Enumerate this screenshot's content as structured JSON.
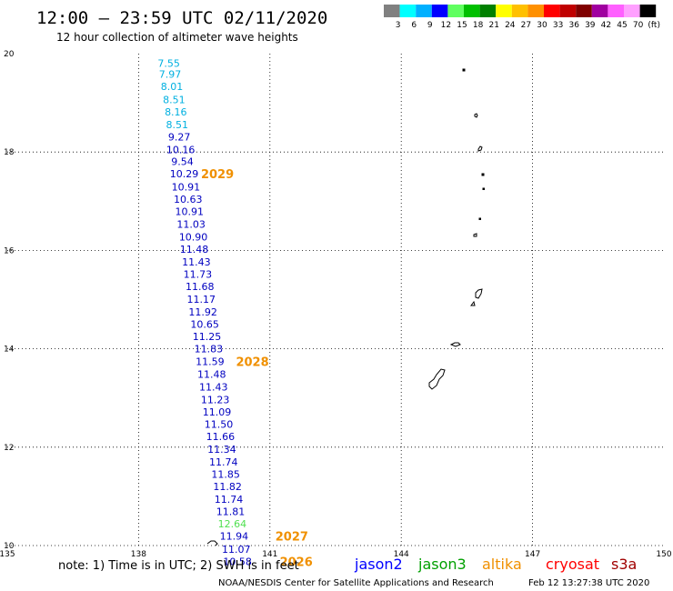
{
  "header": {
    "title": "12:00 — 23:59 UTC 02/11/2020",
    "subtitle": "12 hour collection of altimeter wave heights"
  },
  "color_scale": {
    "labels": [
      "3",
      "6",
      "9",
      "12",
      "15",
      "18",
      "21",
      "24",
      "27",
      "30",
      "33",
      "36",
      "39",
      "42",
      "45",
      "70",
      "(ft)"
    ],
    "colors": [
      "#808080",
      "#00ffff",
      "#00b0ff",
      "#0000ff",
      "#60ff60",
      "#00c000",
      "#008000",
      "#ffff00",
      "#ffc000",
      "#ff9000",
      "#ff0000",
      "#c00000",
      "#800000",
      "#a000a0",
      "#ff60ff",
      "#ffa0ff",
      "#000000"
    ]
  },
  "map": {
    "lat_range": [
      10,
      20
    ],
    "lon_range": [
      135,
      150
    ],
    "lat_ticks": [
      "20",
      "18",
      "16",
      "14",
      "12",
      "10"
    ],
    "lon_ticks": [
      "135",
      "138",
      "141",
      "144",
      "147",
      "150"
    ],
    "gridlines": "dotted"
  },
  "observations": [
    {
      "value": "7.55",
      "lon": 138.69,
      "lat": 19.81,
      "color": "#00b0e0"
    },
    {
      "value": "7.97",
      "lon": 138.72,
      "lat": 19.58,
      "color": "#00b0e0"
    },
    {
      "value": "8.01",
      "lon": 138.76,
      "lat": 19.33,
      "color": "#00b0e0"
    },
    {
      "value": "8.51",
      "lon": 138.81,
      "lat": 19.07,
      "color": "#00b0e0"
    },
    {
      "value": "8.16",
      "lon": 138.85,
      "lat": 18.82,
      "color": "#00b0e0"
    },
    {
      "value": "8.51",
      "lon": 138.88,
      "lat": 18.56,
      "color": "#00b0e0"
    },
    {
      "value": "9.27",
      "lon": 138.93,
      "lat": 18.31,
      "color": "#0000c0"
    },
    {
      "value": "10.16",
      "lon": 138.96,
      "lat": 18.05,
      "color": "#0000c0"
    },
    {
      "value": "9.54",
      "lon": 139.0,
      "lat": 17.81,
      "color": "#0000c0"
    },
    {
      "value": "10.29",
      "lon": 139.04,
      "lat": 17.56,
      "color": "#0000c0"
    },
    {
      "value": "10.91",
      "lon": 139.08,
      "lat": 17.29,
      "color": "#0000c0"
    },
    {
      "value": "10.63",
      "lon": 139.13,
      "lat": 17.04,
      "color": "#0000c0"
    },
    {
      "value": "10.91",
      "lon": 139.16,
      "lat": 16.79,
      "color": "#0000c0"
    },
    {
      "value": "11.03",
      "lon": 139.2,
      "lat": 16.53,
      "color": "#0000c0"
    },
    {
      "value": "10.90",
      "lon": 139.25,
      "lat": 16.28,
      "color": "#0000c0"
    },
    {
      "value": "11.48",
      "lon": 139.27,
      "lat": 16.03,
      "color": "#0000c0"
    },
    {
      "value": "11.43",
      "lon": 139.32,
      "lat": 15.77,
      "color": "#0000c0"
    },
    {
      "value": "11.73",
      "lon": 139.35,
      "lat": 15.52,
      "color": "#0000c0"
    },
    {
      "value": "11.68",
      "lon": 139.4,
      "lat": 15.27,
      "color": "#0000c0"
    },
    {
      "value": "11.17",
      "lon": 139.43,
      "lat": 15.01,
      "color": "#0000c0"
    },
    {
      "value": "11.92",
      "lon": 139.47,
      "lat": 14.75,
      "color": "#0000c0"
    },
    {
      "value": "10.65",
      "lon": 139.51,
      "lat": 14.5,
      "color": "#0000c0"
    },
    {
      "value": "11.25",
      "lon": 139.56,
      "lat": 14.25,
      "color": "#0000c0"
    },
    {
      "value": "11.83",
      "lon": 139.6,
      "lat": 14.0,
      "color": "#0000c0"
    },
    {
      "value": "11.59",
      "lon": 139.63,
      "lat": 13.74,
      "color": "#0000c0"
    },
    {
      "value": "11.48",
      "lon": 139.67,
      "lat": 13.48,
      "color": "#0000c0"
    },
    {
      "value": "11.43",
      "lon": 139.71,
      "lat": 13.23,
      "color": "#0000c0"
    },
    {
      "value": "11.23",
      "lon": 139.75,
      "lat": 12.97,
      "color": "#0000c0"
    },
    {
      "value": "11.09",
      "lon": 139.79,
      "lat": 12.72,
      "color": "#0000c0"
    },
    {
      "value": "11.50",
      "lon": 139.83,
      "lat": 12.47,
      "color": "#0000c0"
    },
    {
      "value": "11.66",
      "lon": 139.87,
      "lat": 12.22,
      "color": "#0000c0"
    },
    {
      "value": "11.34",
      "lon": 139.9,
      "lat": 11.96,
      "color": "#0000c0"
    },
    {
      "value": "11.74",
      "lon": 139.94,
      "lat": 11.7,
      "color": "#0000c0"
    },
    {
      "value": "11.85",
      "lon": 139.99,
      "lat": 11.45,
      "color": "#0000c0"
    },
    {
      "value": "11.82",
      "lon": 140.03,
      "lat": 11.2,
      "color": "#0000c0"
    },
    {
      "value": "11.74",
      "lon": 140.06,
      "lat": 10.94,
      "color": "#0000c0"
    },
    {
      "value": "11.81",
      "lon": 140.1,
      "lat": 10.69,
      "color": "#0000c0"
    },
    {
      "value": "12.64",
      "lon": 140.14,
      "lat": 10.44,
      "color": "#50e050"
    },
    {
      "value": "11.94",
      "lon": 140.18,
      "lat": 10.19,
      "color": "#0000c0"
    },
    {
      "value": "11.07",
      "lon": 140.23,
      "lat": 9.93,
      "color": "#0000c0"
    },
    {
      "value": "10.58",
      "lon": 140.26,
      "lat": 9.68,
      "color": "#0000c0"
    }
  ],
  "pass_labels": [
    {
      "text": "2029",
      "lon": 139.8,
      "lat": 17.56
    },
    {
      "text": "2028",
      "lon": 140.6,
      "lat": 13.74
    },
    {
      "text": "2027",
      "lon": 141.5,
      "lat": 10.19
    },
    {
      "text": "2026",
      "lon": 141.6,
      "lat": 9.68
    }
  ],
  "footer": {
    "note": "note:  1) Time is in UTC;  2) SWH is in feet",
    "satellites": [
      {
        "name": "jason2",
        "color": "#0000ff"
      },
      {
        "name": "jason3",
        "color": "#00a000"
      },
      {
        "name": "altika",
        "color": "#f09000"
      },
      {
        "name": "cryosat",
        "color": "#ff0000"
      },
      {
        "name": "s3a",
        "color": "#a00000"
      }
    ],
    "credit": "NOAA/NESDIS Center for Satellite Applications and Research",
    "timestamp": "Feb 12 13:27:38 UTC 2020"
  }
}
